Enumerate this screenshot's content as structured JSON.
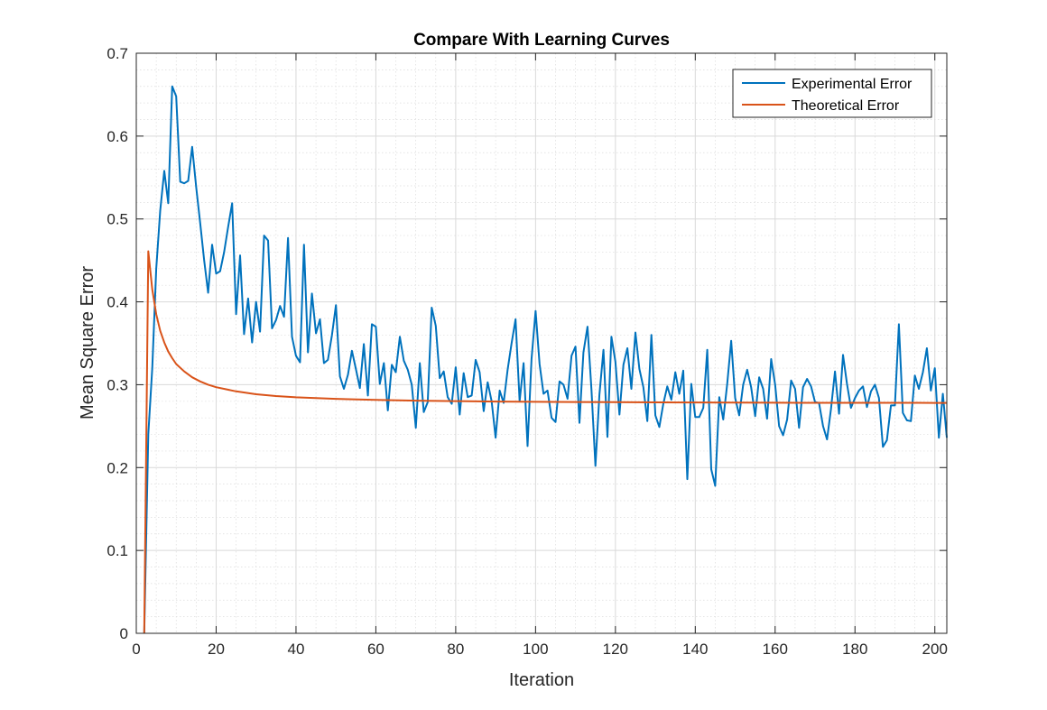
{
  "chart_data": {
    "type": "line",
    "title": "Compare With Learning Curves",
    "xlabel": "Iteration",
    "ylabel": "Mean Square Error",
    "xlim": [
      0,
      203
    ],
    "ylim": [
      0,
      0.7
    ],
    "xticks": [
      0,
      20,
      40,
      60,
      80,
      100,
      120,
      140,
      160,
      180,
      200
    ],
    "yticks": [
      0,
      0.1,
      0.2,
      0.3,
      0.4,
      0.5,
      0.6,
      0.7
    ],
    "xtick_labels": [
      "0",
      "20",
      "40",
      "60",
      "80",
      "100",
      "120",
      "140",
      "160",
      "180",
      "200"
    ],
    "ytick_labels": [
      "0",
      "0.1",
      "0.2",
      "0.3",
      "0.4",
      "0.5",
      "0.6",
      "0.7"
    ],
    "grid": true,
    "minor_grid": true,
    "legend_position": "top-right",
    "series": [
      {
        "name": "Experimental Error",
        "color": "#0072BD",
        "x": [
          2,
          3,
          4,
          5,
          6,
          7,
          8,
          9,
          10,
          11,
          12,
          13,
          14,
          15,
          16,
          17,
          18,
          19,
          20,
          21,
          22,
          23,
          24,
          25,
          26,
          27,
          28,
          29,
          30,
          31,
          32,
          33,
          34,
          35,
          36,
          37,
          38,
          39,
          40,
          41,
          42,
          43,
          44,
          45,
          46,
          47,
          48,
          49,
          50,
          51,
          52,
          53,
          54,
          55,
          56,
          57,
          58,
          59,
          60,
          61,
          62,
          63,
          64,
          65,
          66,
          67,
          68,
          69,
          70,
          71,
          72,
          73,
          74,
          75,
          76,
          77,
          78,
          79,
          80,
          81,
          82,
          83,
          84,
          85,
          86,
          87,
          88,
          89,
          90,
          91,
          92,
          93,
          94,
          95,
          96,
          97,
          98,
          99,
          100,
          101,
          102,
          103,
          104,
          105,
          106,
          107,
          108,
          109,
          110,
          111,
          112,
          113,
          114,
          115,
          116,
          117,
          118,
          119,
          120,
          121,
          122,
          123,
          124,
          125,
          126,
          127,
          128,
          129,
          130,
          131,
          132,
          133,
          134,
          135,
          136,
          137,
          138,
          139,
          140,
          141,
          142,
          143,
          144,
          145,
          146,
          147,
          148,
          149,
          150,
          151,
          152,
          153,
          154,
          155,
          156,
          157,
          158,
          159,
          160,
          161,
          162,
          163,
          164,
          165,
          166,
          167,
          168,
          169,
          170,
          171,
          172,
          173,
          174,
          175,
          176,
          177,
          178,
          179,
          180,
          181,
          182,
          183,
          184,
          185,
          186,
          187,
          188,
          189,
          190,
          191,
          192,
          193,
          194,
          195,
          196,
          197,
          198,
          199,
          200,
          201,
          202,
          203
        ],
        "y": [
          0.0,
          0.24,
          0.32,
          0.44,
          0.51,
          0.558,
          0.519,
          0.66,
          0.648,
          0.545,
          0.543,
          0.546,
          0.587,
          0.538,
          0.495,
          0.45,
          0.411,
          0.469,
          0.434,
          0.437,
          0.46,
          0.49,
          0.519,
          0.385,
          0.456,
          0.361,
          0.404,
          0.351,
          0.4,
          0.364,
          0.48,
          0.474,
          0.368,
          0.378,
          0.395,
          0.382,
          0.477,
          0.358,
          0.335,
          0.327,
          0.469,
          0.339,
          0.41,
          0.362,
          0.379,
          0.326,
          0.33,
          0.36,
          0.396,
          0.31,
          0.295,
          0.312,
          0.341,
          0.319,
          0.296,
          0.349,
          0.287,
          0.373,
          0.37,
          0.301,
          0.326,
          0.269,
          0.324,
          0.315,
          0.358,
          0.329,
          0.318,
          0.3,
          0.248,
          0.326,
          0.267,
          0.279,
          0.393,
          0.371,
          0.308,
          0.316,
          0.285,
          0.277,
          0.321,
          0.264,
          0.314,
          0.285,
          0.287,
          0.33,
          0.315,
          0.268,
          0.303,
          0.28,
          0.236,
          0.293,
          0.278,
          0.318,
          0.35,
          0.379,
          0.28,
          0.326,
          0.226,
          0.331,
          0.389,
          0.325,
          0.289,
          0.293,
          0.26,
          0.255,
          0.304,
          0.3,
          0.283,
          0.335,
          0.346,
          0.254,
          0.339,
          0.37,
          0.294,
          0.202,
          0.288,
          0.342,
          0.237,
          0.358,
          0.328,
          0.264,
          0.324,
          0.344,
          0.295,
          0.363,
          0.319,
          0.297,
          0.256,
          0.36,
          0.263,
          0.249,
          0.277,
          0.298,
          0.282,
          0.315,
          0.289,
          0.317,
          0.186,
          0.301,
          0.261,
          0.261,
          0.272,
          0.342,
          0.198,
          0.178,
          0.285,
          0.258,
          0.301,
          0.353,
          0.284,
          0.263,
          0.3,
          0.318,
          0.297,
          0.262,
          0.309,
          0.295,
          0.259,
          0.331,
          0.3,
          0.25,
          0.239,
          0.258,
          0.305,
          0.295,
          0.248,
          0.297,
          0.307,
          0.298,
          0.279,
          0.278,
          0.25,
          0.234,
          0.271,
          0.316,
          0.265,
          0.336,
          0.301,
          0.272,
          0.284,
          0.293,
          0.298,
          0.273,
          0.292,
          0.3,
          0.284,
          0.225,
          0.233,
          0.275,
          0.275,
          0.373,
          0.266,
          0.257,
          0.256,
          0.311,
          0.295,
          0.315,
          0.344,
          0.293,
          0.32,
          0.236,
          0.289,
          0.236
        ]
      },
      {
        "name": "Theoretical Error",
        "color": "#D95319",
        "x": [
          2,
          3,
          4,
          5,
          6,
          7,
          8,
          9,
          10,
          12,
          14,
          16,
          18,
          20,
          25,
          30,
          35,
          40,
          50,
          60,
          70,
          80,
          90,
          100,
          110,
          120,
          130,
          140,
          150,
          160,
          170,
          180,
          190,
          200,
          203
        ],
        "y": [
          0.0,
          0.461,
          0.415,
          0.385,
          0.365,
          0.351,
          0.34,
          0.332,
          0.325,
          0.316,
          0.309,
          0.304,
          0.3,
          0.297,
          0.292,
          0.2885,
          0.2863,
          0.2848,
          0.2829,
          0.2816,
          0.2808,
          0.2802,
          0.2797,
          0.2794,
          0.2791,
          0.2789,
          0.2787,
          0.2786,
          0.2784,
          0.2783,
          0.2782,
          0.2782,
          0.2781,
          0.278,
          0.278
        ]
      }
    ]
  }
}
